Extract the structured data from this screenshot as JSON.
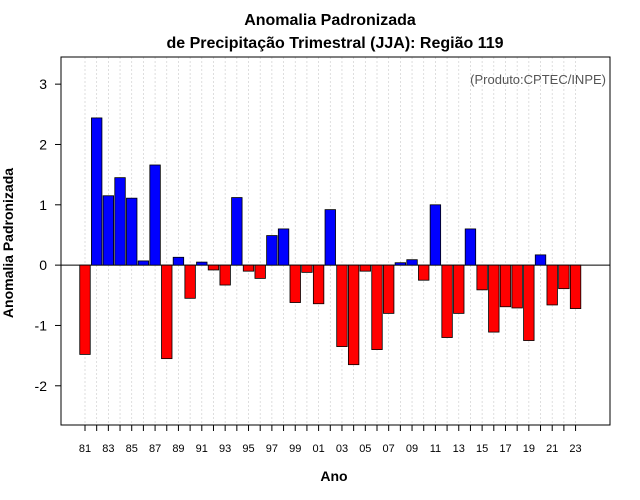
{
  "chart_data": {
    "type": "bar",
    "title": "Anomalia Padronizada",
    "subtitle": "de Precipitação Trimestral (JJA): Região 119",
    "xlabel": "Ano",
    "ylabel": "Anomalia Padronizada",
    "annotation": "(Produto:CPTEC/INPE)",
    "ylim": [
      -2.65,
      3.45
    ],
    "yticks": [
      "-2",
      "-1",
      "0",
      "1",
      "2",
      "3"
    ],
    "ytick_values": [
      -2,
      -1,
      0,
      1,
      2,
      3
    ],
    "grid": true,
    "categories": [
      "81",
      "82",
      "83",
      "84",
      "85",
      "86",
      "87",
      "88",
      "89",
      "90",
      "91",
      "92",
      "93",
      "94",
      "95",
      "96",
      "97",
      "98",
      "99",
      "00",
      "01",
      "02",
      "03",
      "04",
      "05",
      "06",
      "07",
      "08",
      "09",
      "10",
      "11",
      "12",
      "13",
      "14",
      "15",
      "16",
      "17",
      "18",
      "19",
      "20",
      "21",
      "22",
      "23"
    ],
    "xtick_labels": [
      "81",
      "83",
      "85",
      "87",
      "89",
      "91",
      "93",
      "95",
      "97",
      "99",
      "01",
      "03",
      "05",
      "07",
      "09",
      "11",
      "13",
      "15",
      "17",
      "19",
      "21",
      "23"
    ],
    "values": [
      -1.48,
      2.44,
      1.15,
      1.45,
      1.11,
      0.07,
      1.66,
      -1.55,
      0.13,
      -0.55,
      0.05,
      -0.08,
      -0.33,
      1.12,
      -0.1,
      -0.22,
      0.49,
      0.6,
      -0.62,
      -0.12,
      -0.64,
      0.92,
      -1.35,
      -1.65,
      -0.1,
      -1.4,
      -0.8,
      0.04,
      0.09,
      -0.25,
      1.0,
      -1.2,
      -0.8,
      0.6,
      -0.41,
      -1.11,
      -0.69,
      -0.71,
      -1.25,
      0.17,
      -0.66,
      -0.39,
      -0.72
    ],
    "colors": {
      "positive": "#0000ff",
      "negative": "#ff0000",
      "outline": "#000000",
      "grid": "#d0d0d0"
    }
  }
}
